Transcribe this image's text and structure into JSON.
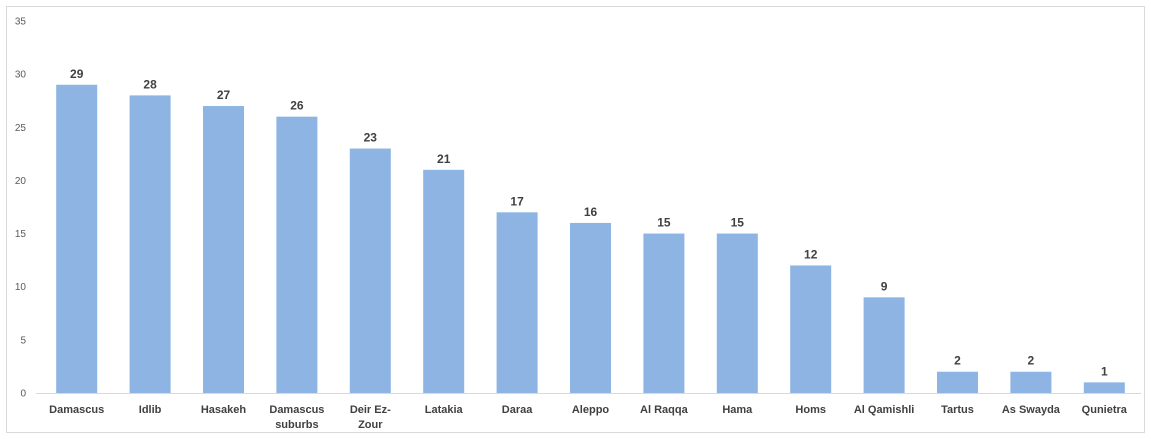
{
  "chart_data": {
    "type": "bar",
    "title": "",
    "xlabel": "",
    "ylabel": "",
    "ylim": [
      0,
      35
    ],
    "yticks": [
      0,
      5,
      10,
      15,
      20,
      25,
      30,
      35
    ],
    "grid": false,
    "legend": "none",
    "bar_color": "#8db4e2",
    "categories": [
      "Damascus",
      "Idlib",
      "Hasakeh",
      "Damascus suburbs",
      "Deir Ez-Zour",
      "Latakia",
      "Daraa",
      "Aleppo",
      "Al Raqqa",
      "Hama",
      "Homs",
      "Al Qamishli",
      "Tartus",
      "As Swayda",
      "Qunietra"
    ],
    "category_lines": [
      [
        "Damascus"
      ],
      [
        "Idlib"
      ],
      [
        "Hasakeh"
      ],
      [
        "Damascus",
        "suburbs"
      ],
      [
        "Deir Ez-",
        "Zour"
      ],
      [
        "Latakia"
      ],
      [
        "Daraa"
      ],
      [
        "Aleppo"
      ],
      [
        "Al Raqqa"
      ],
      [
        "Hama"
      ],
      [
        "Homs"
      ],
      [
        "Al Qamishli"
      ],
      [
        "Tartus"
      ],
      [
        "As Swayda"
      ],
      [
        "Qunietra"
      ]
    ],
    "values": [
      29,
      28,
      27,
      26,
      23,
      21,
      17,
      16,
      15,
      15,
      12,
      9,
      2,
      2,
      1
    ]
  }
}
